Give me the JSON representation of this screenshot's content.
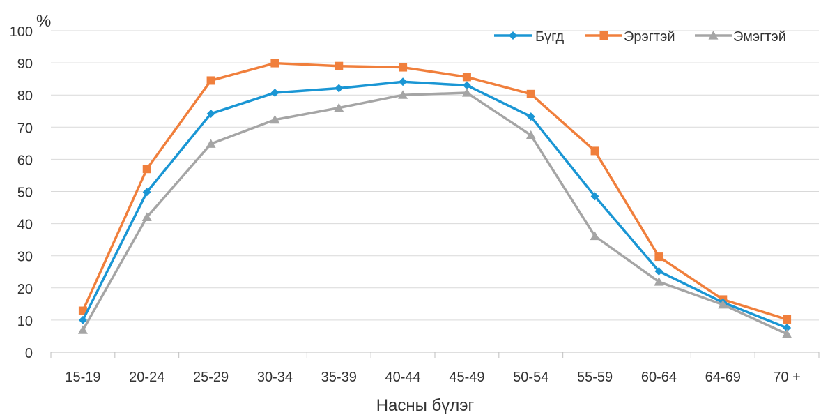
{
  "chart_data": {
    "type": "line",
    "ylabel": "%",
    "xlabel": "Насны бүлэг",
    "categories": [
      "15-19",
      "20-24",
      "25-29",
      "30-34",
      "35-39",
      "40-44",
      "45-49",
      "50-54",
      "55-59",
      "60-64",
      "64-69",
      "70 +"
    ],
    "ylim": [
      0,
      100
    ],
    "yticks": [
      0,
      10,
      20,
      30,
      40,
      50,
      60,
      70,
      80,
      90,
      100
    ],
    "grid": true,
    "legend_position": "top-right",
    "series": [
      {
        "name": "Бүгд",
        "color": "#1a96d4",
        "marker": "diamond",
        "values": [
          10.0,
          49.8,
          74.2,
          80.7,
          82.1,
          84.1,
          83.0,
          73.3,
          48.5,
          25.2,
          15.5,
          7.6
        ]
      },
      {
        "name": "Эрэгтэй",
        "color": "#f07f3c",
        "marker": "square",
        "values": [
          12.9,
          57.0,
          84.5,
          89.9,
          89.0,
          88.6,
          85.6,
          80.3,
          62.6,
          29.7,
          16.4,
          10.2
        ]
      },
      {
        "name": "Эмэгтэй",
        "color": "#a5a5a5",
        "marker": "triangle",
        "values": [
          6.9,
          42.0,
          64.8,
          72.3,
          76.0,
          80.0,
          80.7,
          67.5,
          36.1,
          21.9,
          14.8,
          5.7
        ]
      }
    ]
  }
}
